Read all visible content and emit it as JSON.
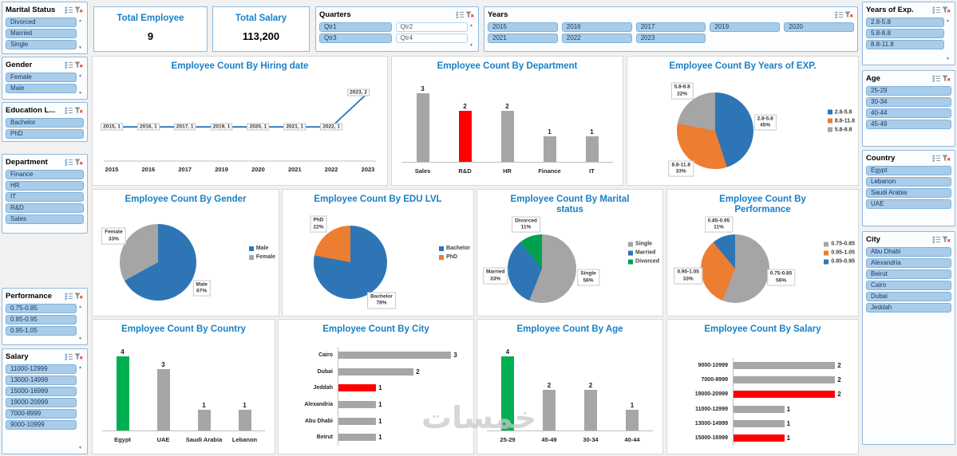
{
  "kpis": [
    {
      "id": "total-employee",
      "title": "Total Employee",
      "value": "9"
    },
    {
      "id": "total-salary",
      "title": "Total Salary",
      "value": "113,200"
    }
  ],
  "icons": {
    "scroll_up": "▲",
    "scroll_down": "▼",
    "multi_select": "multi-select-icon",
    "clear_filter": "clear-filter-icon"
  },
  "slicers": [
    {
      "id": "marital",
      "title": "Marital Status",
      "columns": 1,
      "scrollbar": true,
      "items": [
        {
          "label": "Divorced",
          "on": true
        },
        {
          "label": "Married",
          "on": true
        },
        {
          "label": "Single",
          "on": true
        }
      ]
    },
    {
      "id": "gender",
      "title": "Gender",
      "columns": 1,
      "scrollbar": true,
      "items": [
        {
          "label": "Female",
          "on": true
        },
        {
          "label": "Male",
          "on": true
        }
      ]
    },
    {
      "id": "education",
      "title": "Education L...",
      "columns": 1,
      "scrollbar": false,
      "items": [
        {
          "label": "Bachelor",
          "on": true
        },
        {
          "label": "PhD",
          "on": true
        }
      ]
    },
    {
      "id": "department",
      "title": "Department",
      "columns": 1,
      "scrollbar": false,
      "items": [
        {
          "label": "Finance",
          "on": true
        },
        {
          "label": "HR",
          "on": true
        },
        {
          "label": "IT",
          "on": true
        },
        {
          "label": "R&D",
          "on": true
        },
        {
          "label": "Sales",
          "on": true
        }
      ]
    },
    {
      "id": "performance",
      "title": "Performance",
      "columns": 1,
      "scrollbar": true,
      "items": [
        {
          "label": "0.75-0.85",
          "on": true
        },
        {
          "label": "0.85-0.95",
          "on": true
        },
        {
          "label": "0.95-1.05",
          "on": true
        }
      ]
    },
    {
      "id": "salary",
      "title": "Salary",
      "columns": 1,
      "scrollbar": true,
      "items": [
        {
          "label": "11000-12999",
          "on": true
        },
        {
          "label": "13000-14999",
          "on": true
        },
        {
          "label": "15000-16999",
          "on": true
        },
        {
          "label": "19000-20999",
          "on": true
        },
        {
          "label": "7000-8999",
          "on": true
        },
        {
          "label": "9000-10999",
          "on": true
        }
      ]
    },
    {
      "id": "quarters",
      "title": "Quarters",
      "columns": 2,
      "scrollbar": true,
      "items": [
        {
          "label": "Qtr1",
          "on": true
        },
        {
          "label": "Qtr2",
          "on": false
        },
        {
          "label": "Qtr3",
          "on": true
        },
        {
          "label": "Qtr4",
          "on": false
        }
      ]
    },
    {
      "id": "years",
      "title": "Years",
      "columns": 5,
      "scrollbar": false,
      "items": [
        {
          "label": "2015",
          "on": true
        },
        {
          "label": "2016",
          "on": true
        },
        {
          "label": "2017",
          "on": true
        },
        {
          "label": "2019",
          "on": true
        },
        {
          "label": "2020",
          "on": true
        },
        {
          "label": "2021",
          "on": true
        },
        {
          "label": "2022",
          "on": true
        },
        {
          "label": "2023",
          "on": true
        }
      ]
    },
    {
      "id": "yearsexp",
      "title": "Years of Exp.",
      "columns": 1,
      "scrollbar": true,
      "items": [
        {
          "label": "2.8-5.8",
          "on": true
        },
        {
          "label": "5.8-8.8",
          "on": true
        },
        {
          "label": "8.8-11.8",
          "on": true
        }
      ]
    },
    {
      "id": "age",
      "title": "Age",
      "columns": 1,
      "scrollbar": false,
      "items": [
        {
          "label": "25-29",
          "on": true
        },
        {
          "label": "30-34",
          "on": true
        },
        {
          "label": "40-44",
          "on": true
        },
        {
          "label": "45-49",
          "on": true
        }
      ]
    },
    {
      "id": "country",
      "title": "Country",
      "columns": 1,
      "scrollbar": false,
      "items": [
        {
          "label": "Egypt",
          "on": true
        },
        {
          "label": "Lebanon",
          "on": true
        },
        {
          "label": "Saudi Arabia",
          "on": true
        },
        {
          "label": "UAE",
          "on": true
        }
      ]
    },
    {
      "id": "city",
      "title": "City",
      "columns": 1,
      "scrollbar": false,
      "items": [
        {
          "label": "Abu Dhabi",
          "on": true
        },
        {
          "label": "Alexandria",
          "on": true
        },
        {
          "label": "Beirut",
          "on": true
        },
        {
          "label": "Cairo",
          "on": true
        },
        {
          "label": "Dubai",
          "on": true
        },
        {
          "label": "Jeddah",
          "on": true
        }
      ]
    }
  ],
  "chart_data": [
    {
      "id": "hiring",
      "type": "line",
      "title": "Employee Count By Hiring date",
      "categories": [
        "2015",
        "2016",
        "2017",
        "2019",
        "2020",
        "2021",
        "2022",
        "2023"
      ],
      "values": [
        1,
        1,
        1,
        1,
        1,
        1,
        1,
        2
      ],
      "point_labels": [
        "2015, 1",
        "2016, 1",
        "2017, 1",
        "2019, 1",
        "2020, 1",
        "2021, 1",
        "2022, 1",
        "2023, 2"
      ],
      "line_color": "#2E75B6",
      "ylim": [
        0,
        2
      ]
    },
    {
      "id": "department",
      "type": "bar",
      "title": "Employee Count By Department",
      "categories": [
        "Sales",
        "R&D",
        "HR",
        "Finance",
        "IT"
      ],
      "values": [
        3,
        2,
        2,
        1,
        1
      ],
      "colors": [
        "#A6A6A6",
        "#FF0000",
        "#A6A6A6",
        "#A6A6A6",
        "#A6A6A6"
      ],
      "ylim": [
        0,
        3
      ]
    },
    {
      "id": "yearsexp",
      "type": "pie",
      "title": "Employee Count By Years of EXP.",
      "slices": [
        {
          "label": "2.8-5.8",
          "pct": 45,
          "color": "#2E75B6"
        },
        {
          "label": "8.8-11.8",
          "pct": 33,
          "color": "#ED7D31"
        },
        {
          "label": "5.8-8.8",
          "pct": 22,
          "color": "#A5A5A5"
        }
      ],
      "legend_position": "right"
    },
    {
      "id": "gender",
      "type": "pie",
      "title": "Employee Count By Gender",
      "slices": [
        {
          "label": "Male",
          "pct": 67,
          "color": "#2E75B6"
        },
        {
          "label": "Female",
          "pct": 33,
          "color": "#A5A5A5"
        }
      ],
      "legend_position": "right"
    },
    {
      "id": "edu",
      "type": "pie",
      "title": "Employee Count By EDU LVL",
      "slices": [
        {
          "label": "Bachelor",
          "pct": 78,
          "color": "#2E75B6"
        },
        {
          "label": "PhD",
          "pct": 22,
          "color": "#ED7D31"
        }
      ],
      "legend_position": "right"
    },
    {
      "id": "marital",
      "type": "pie",
      "title": "Employee Count By Marital status",
      "slices": [
        {
          "label": "Single",
          "pct": 56,
          "color": "#A5A5A5"
        },
        {
          "label": "Married",
          "pct": 33,
          "color": "#2E75B6"
        },
        {
          "label": "Divorced",
          "pct": 11,
          "color": "#00A14E"
        }
      ],
      "legend_position": "right"
    },
    {
      "id": "performance",
      "type": "pie",
      "title": "Employee Count By Performance",
      "slices": [
        {
          "label": "0.75-0.85",
          "pct": 56,
          "color": "#A5A5A5"
        },
        {
          "label": "0.95-1.05",
          "pct": 33,
          "color": "#ED7D31"
        },
        {
          "label": "0.85-0.95",
          "pct": 11,
          "color": "#2E75B6"
        }
      ],
      "legend_position": "right"
    },
    {
      "id": "country",
      "type": "bar",
      "title": "Employee Count By Country",
      "categories": [
        "Egypt",
        "UAE",
        "Saudi Arabia",
        "Lebanon"
      ],
      "values": [
        4,
        3,
        1,
        1
      ],
      "colors": [
        "#00B050",
        "#A6A6A6",
        "#A6A6A6",
        "#A6A6A6"
      ],
      "ylim": [
        0,
        4
      ]
    },
    {
      "id": "city",
      "type": "hbar",
      "title": "Employee Count By City",
      "categories": [
        "Cairo",
        "Dubai",
        "Jeddah",
        "Alexandria",
        "Abu Dhabi",
        "Beirut"
      ],
      "values": [
        3,
        2,
        1,
        1,
        1,
        1
      ],
      "colors": [
        "#A6A6A6",
        "#A6A6A6",
        "#FF0000",
        "#A6A6A6",
        "#A6A6A6",
        "#A6A6A6"
      ],
      "xlim": [
        0,
        3.25
      ]
    },
    {
      "id": "age",
      "type": "bar",
      "title": "Employee Count By Age",
      "categories": [
        "25-29",
        "45-49",
        "30-34",
        "40-44"
      ],
      "values": [
        4,
        2,
        2,
        1
      ],
      "colors": [
        "#00B050",
        "#A6A6A6",
        "#A6A6A6",
        "#A6A6A6"
      ],
      "ylim": [
        0,
        4
      ]
    },
    {
      "id": "salary",
      "type": "hbar",
      "title": "Employee Count By Salary",
      "categories": [
        "9000-10999",
        "7000-8999",
        "19000-20999",
        "11000-12999",
        "13000-14999",
        "15000-16999"
      ],
      "values": [
        2,
        2,
        2,
        1,
        1,
        1
      ],
      "colors": [
        "#A6A6A6",
        "#A6A6A6",
        "#FF0000",
        "#A6A6A6",
        "#A6A6A6",
        "#FF0000"
      ],
      "xlim": [
        0,
        2.2
      ]
    }
  ],
  "watermark": {
    "text": "خمسات"
  },
  "colors": {
    "accent_blue": "#1880C6",
    "slicer_fill": "#A9CCE9",
    "slicer_border": "#7EB1DC",
    "bar_gray": "#A6A6A6",
    "bar_red": "#FF0000",
    "bar_green": "#00B050",
    "pie_blue": "#2E75B6",
    "pie_orange": "#ED7D31",
    "pie_gray": "#A5A5A5",
    "pie_green": "#00A14E"
  }
}
